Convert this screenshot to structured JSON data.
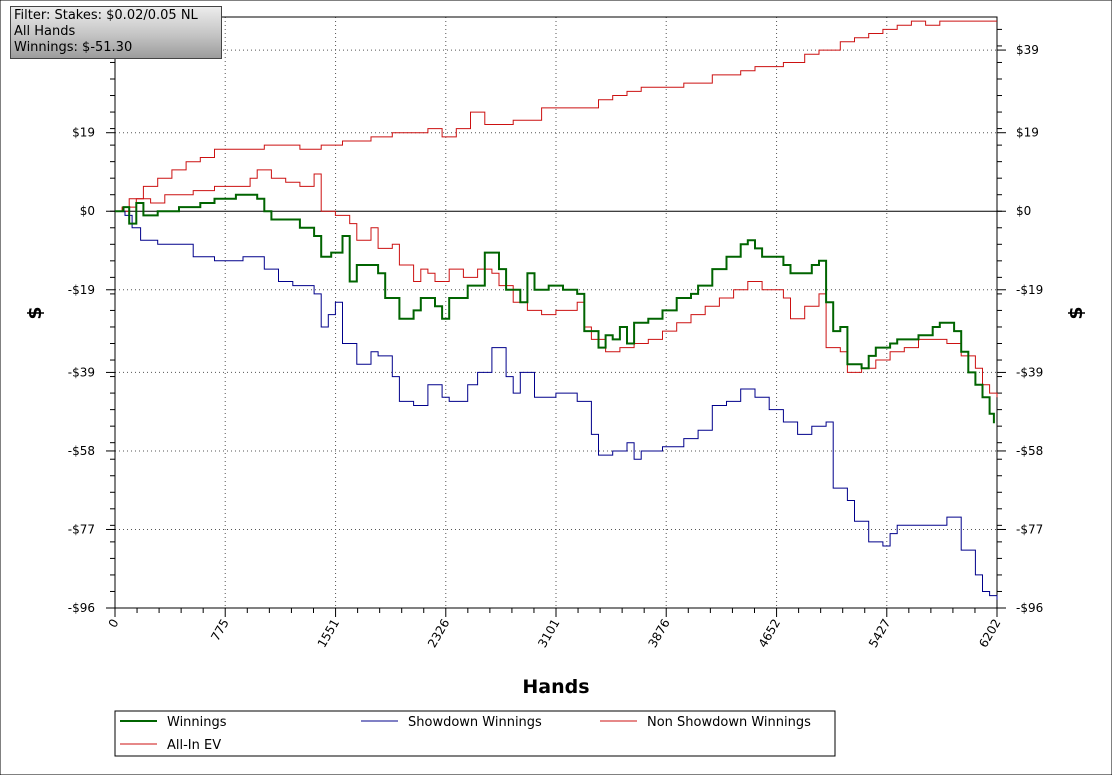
{
  "filter_box": {
    "line1": "Filter: Stakes: $0.02/0.05 NL",
    "line2": "All Hands",
    "line3": "Winnings: $-51.30"
  },
  "chart_data": {
    "type": "line",
    "xlabel": "Hands",
    "ylabel": "$",
    "xlim": [
      0,
      6202
    ],
    "ylim": [
      -96,
      47
    ],
    "x_ticks": [
      0,
      775,
      1551,
      2326,
      3101,
      3876,
      4652,
      5427,
      6202
    ],
    "y_ticks": [
      39,
      19,
      0,
      -19,
      -39,
      -58,
      -77,
      -96
    ],
    "y_tick_labels": [
      "$39",
      "$19",
      "$0",
      "-$19",
      "-$39",
      "-$58",
      "-$77",
      "-$96"
    ],
    "grid": true,
    "legend_position": "bottom",
    "series": [
      {
        "name": "Winnings",
        "color": "#006400",
        "stroke_width": 2,
        "step": true,
        "points": [
          [
            0,
            0
          ],
          [
            60,
            1
          ],
          [
            100,
            -3
          ],
          [
            150,
            2
          ],
          [
            200,
            -1
          ],
          [
            300,
            0
          ],
          [
            450,
            1
          ],
          [
            600,
            2
          ],
          [
            700,
            3
          ],
          [
            850,
            4
          ],
          [
            1000,
            3
          ],
          [
            1050,
            0
          ],
          [
            1100,
            -2
          ],
          [
            1300,
            -4
          ],
          [
            1400,
            -6
          ],
          [
            1450,
            -11
          ],
          [
            1520,
            -10
          ],
          [
            1600,
            -6
          ],
          [
            1650,
            -17
          ],
          [
            1700,
            -13
          ],
          [
            1850,
            -15
          ],
          [
            1900,
            -21
          ],
          [
            2000,
            -26
          ],
          [
            2100,
            -24
          ],
          [
            2150,
            -21
          ],
          [
            2250,
            -23
          ],
          [
            2300,
            -26
          ],
          [
            2350,
            -21
          ],
          [
            2480,
            -18
          ],
          [
            2600,
            -10
          ],
          [
            2700,
            -14
          ],
          [
            2750,
            -19
          ],
          [
            2850,
            -22
          ],
          [
            2900,
            -15
          ],
          [
            2950,
            -19
          ],
          [
            3050,
            -18
          ],
          [
            3150,
            -19
          ],
          [
            3250,
            -20
          ],
          [
            3300,
            -29
          ],
          [
            3400,
            -33
          ],
          [
            3450,
            -30
          ],
          [
            3500,
            -31
          ],
          [
            3550,
            -28
          ],
          [
            3600,
            -32
          ],
          [
            3650,
            -27
          ],
          [
            3750,
            -26
          ],
          [
            3850,
            -24
          ],
          [
            3950,
            -21
          ],
          [
            4050,
            -20
          ],
          [
            4100,
            -18
          ],
          [
            4200,
            -14
          ],
          [
            4300,
            -11
          ],
          [
            4400,
            -8
          ],
          [
            4450,
            -7
          ],
          [
            4500,
            -9
          ],
          [
            4550,
            -11
          ],
          [
            4700,
            -13
          ],
          [
            4750,
            -15
          ],
          [
            4900,
            -13
          ],
          [
            4950,
            -12
          ],
          [
            5000,
            -22
          ],
          [
            5050,
            -29
          ],
          [
            5100,
            -28
          ],
          [
            5150,
            -37
          ],
          [
            5250,
            -38
          ],
          [
            5300,
            -35
          ],
          [
            5350,
            -33
          ],
          [
            5450,
            -32
          ],
          [
            5500,
            -31
          ],
          [
            5650,
            -30
          ],
          [
            5750,
            -28
          ],
          [
            5800,
            -27
          ],
          [
            5900,
            -29
          ],
          [
            5950,
            -34
          ],
          [
            6000,
            -39
          ],
          [
            6050,
            -42
          ],
          [
            6100,
            -45
          ],
          [
            6150,
            -49
          ],
          [
            6180,
            -51.3
          ]
        ]
      },
      {
        "name": "Showdown Winnings",
        "color": "#00008b",
        "stroke_width": 1,
        "step": true,
        "points": [
          [
            0,
            0
          ],
          [
            70,
            -1
          ],
          [
            120,
            -4
          ],
          [
            180,
            -7
          ],
          [
            300,
            -8
          ],
          [
            400,
            -8
          ],
          [
            550,
            -11
          ],
          [
            700,
            -12
          ],
          [
            900,
            -11
          ],
          [
            1000,
            -11
          ],
          [
            1050,
            -14
          ],
          [
            1150,
            -17
          ],
          [
            1250,
            -18
          ],
          [
            1400,
            -20
          ],
          [
            1450,
            -28
          ],
          [
            1500,
            -25
          ],
          [
            1550,
            -22
          ],
          [
            1600,
            -32
          ],
          [
            1700,
            -37
          ],
          [
            1800,
            -34
          ],
          [
            1850,
            -35
          ],
          [
            1950,
            -40
          ],
          [
            2000,
            -46
          ],
          [
            2100,
            -47
          ],
          [
            2200,
            -42
          ],
          [
            2300,
            -45
          ],
          [
            2350,
            -46
          ],
          [
            2480,
            -42
          ],
          [
            2550,
            -39
          ],
          [
            2650,
            -33
          ],
          [
            2750,
            -40
          ],
          [
            2800,
            -44
          ],
          [
            2850,
            -39
          ],
          [
            2950,
            -45
          ],
          [
            3100,
            -44
          ],
          [
            3250,
            -46
          ],
          [
            3350,
            -54
          ],
          [
            3400,
            -59
          ],
          [
            3500,
            -58
          ],
          [
            3600,
            -56
          ],
          [
            3650,
            -60
          ],
          [
            3700,
            -58
          ],
          [
            3850,
            -57
          ],
          [
            4000,
            -55
          ],
          [
            4100,
            -53
          ],
          [
            4200,
            -47
          ],
          [
            4300,
            -46
          ],
          [
            4400,
            -43
          ],
          [
            4500,
            -45
          ],
          [
            4600,
            -48
          ],
          [
            4700,
            -51
          ],
          [
            4800,
            -54
          ],
          [
            4900,
            -52
          ],
          [
            5000,
            -51
          ],
          [
            5050,
            -67
          ],
          [
            5150,
            -70
          ],
          [
            5200,
            -75
          ],
          [
            5300,
            -80
          ],
          [
            5400,
            -81
          ],
          [
            5450,
            -78
          ],
          [
            5500,
            -76
          ],
          [
            5700,
            -76
          ],
          [
            5850,
            -74
          ],
          [
            5950,
            -82
          ],
          [
            6050,
            -88
          ],
          [
            6100,
            -92
          ],
          [
            6150,
            -93
          ],
          [
            6202,
            -94
          ]
        ]
      },
      {
        "name": "Non Showdown Winnings",
        "color": "#cc1111",
        "stroke_width": 1,
        "step": true,
        "points": [
          [
            0,
            0
          ],
          [
            50,
            1
          ],
          [
            150,
            3
          ],
          [
            250,
            2
          ],
          [
            350,
            4
          ],
          [
            450,
            4
          ],
          [
            550,
            5
          ],
          [
            700,
            6
          ],
          [
            850,
            6
          ],
          [
            950,
            8
          ],
          [
            1000,
            10
          ],
          [
            1100,
            8
          ],
          [
            1200,
            7
          ],
          [
            1300,
            6
          ],
          [
            1400,
            9
          ],
          [
            1450,
            0
          ],
          [
            1550,
            -1
          ],
          [
            1650,
            -3
          ],
          [
            1700,
            -7
          ],
          [
            1800,
            -4
          ],
          [
            1850,
            -9
          ],
          [
            1950,
            -8
          ],
          [
            2000,
            -13
          ],
          [
            2100,
            -17
          ],
          [
            2150,
            -14
          ],
          [
            2200,
            -15
          ],
          [
            2250,
            -17
          ],
          [
            2350,
            -14
          ],
          [
            2450,
            -16
          ],
          [
            2550,
            -14
          ],
          [
            2650,
            -15
          ],
          [
            2700,
            -18
          ],
          [
            2800,
            -22
          ],
          [
            2900,
            -24
          ],
          [
            3000,
            -25
          ],
          [
            3100,
            -24
          ],
          [
            3250,
            -22
          ],
          [
            3300,
            -28
          ],
          [
            3350,
            -31
          ],
          [
            3450,
            -34
          ],
          [
            3550,
            -33
          ],
          [
            3650,
            -32
          ],
          [
            3750,
            -31
          ],
          [
            3850,
            -29
          ],
          [
            3950,
            -27
          ],
          [
            4050,
            -25
          ],
          [
            4150,
            -23
          ],
          [
            4250,
            -21
          ],
          [
            4350,
            -19
          ],
          [
            4450,
            -17
          ],
          [
            4550,
            -19
          ],
          [
            4700,
            -21
          ],
          [
            4750,
            -26
          ],
          [
            4850,
            -23
          ],
          [
            4950,
            -20
          ],
          [
            5000,
            -33
          ],
          [
            5100,
            -34
          ],
          [
            5150,
            -39
          ],
          [
            5250,
            -38
          ],
          [
            5350,
            -36
          ],
          [
            5450,
            -34
          ],
          [
            5550,
            -33
          ],
          [
            5650,
            -31
          ],
          [
            5750,
            -31
          ],
          [
            5850,
            -32
          ],
          [
            5950,
            -35
          ],
          [
            6050,
            -38
          ],
          [
            6100,
            -42
          ],
          [
            6150,
            -44
          ],
          [
            6202,
            -45
          ]
        ]
      },
      {
        "name": "All-In EV",
        "color": "#cc1111",
        "stroke_width": 1,
        "step": true,
        "points": [
          [
            0,
            0
          ],
          [
            100,
            3
          ],
          [
            200,
            6
          ],
          [
            300,
            8
          ],
          [
            400,
            10
          ],
          [
            500,
            12
          ],
          [
            600,
            13
          ],
          [
            700,
            15
          ],
          [
            900,
            15
          ],
          [
            1050,
            16
          ],
          [
            1200,
            16
          ],
          [
            1300,
            15
          ],
          [
            1450,
            16
          ],
          [
            1600,
            17
          ],
          [
            1800,
            18
          ],
          [
            1950,
            19
          ],
          [
            2100,
            19
          ],
          [
            2200,
            20
          ],
          [
            2300,
            18
          ],
          [
            2400,
            20
          ],
          [
            2500,
            24
          ],
          [
            2600,
            21
          ],
          [
            2800,
            22
          ],
          [
            3000,
            25
          ],
          [
            3200,
            25
          ],
          [
            3400,
            27
          ],
          [
            3500,
            28
          ],
          [
            3600,
            29
          ],
          [
            3700,
            30
          ],
          [
            3850,
            30
          ],
          [
            4000,
            31
          ],
          [
            4200,
            33
          ],
          [
            4400,
            34
          ],
          [
            4500,
            35
          ],
          [
            4600,
            35
          ],
          [
            4700,
            36
          ],
          [
            4850,
            38
          ],
          [
            4950,
            39
          ],
          [
            5100,
            41
          ],
          [
            5200,
            42
          ],
          [
            5300,
            43
          ],
          [
            5400,
            44
          ],
          [
            5500,
            45
          ],
          [
            5600,
            46
          ],
          [
            5700,
            45
          ],
          [
            5800,
            46
          ],
          [
            5900,
            46
          ],
          [
            6000,
            46
          ],
          [
            6100,
            46
          ],
          [
            6202,
            46
          ]
        ]
      }
    ]
  }
}
